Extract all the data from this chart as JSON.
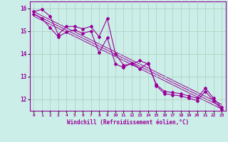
{
  "xlabel": "Windchill (Refroidissement éolien,°C)",
  "background_color": "#cceee8",
  "line_color": "#990099",
  "grid_color": "#aaccbb",
  "xlim": [
    -0.5,
    23.5
  ],
  "ylim": [
    11.5,
    16.3
  ],
  "yticks": [
    12,
    13,
    14,
    15,
    16
  ],
  "xticks": [
    0,
    1,
    2,
    3,
    4,
    5,
    6,
    7,
    8,
    9,
    10,
    11,
    12,
    13,
    14,
    15,
    16,
    17,
    18,
    19,
    20,
    21,
    22,
    23
  ],
  "series1_x": [
    0,
    1,
    2,
    3,
    4,
    5,
    6,
    7,
    8,
    9,
    10,
    11,
    12,
    13,
    14,
    15,
    16,
    17,
    18,
    19,
    20,
    21,
    22,
    23
  ],
  "series1_y": [
    15.85,
    15.95,
    15.65,
    14.85,
    15.2,
    15.2,
    15.1,
    15.2,
    14.75,
    15.55,
    14.0,
    13.5,
    13.55,
    13.7,
    13.55,
    12.65,
    12.35,
    12.3,
    12.25,
    12.15,
    12.05,
    12.5,
    12.05,
    11.65
  ],
  "series2_x": [
    0,
    1,
    2,
    3,
    4,
    5,
    6,
    7,
    8,
    9,
    10,
    11,
    12,
    13,
    14,
    15,
    16,
    17,
    18,
    19,
    20,
    21,
    22,
    23
  ],
  "series2_y": [
    15.75,
    15.55,
    15.15,
    14.75,
    14.95,
    15.05,
    14.9,
    15.0,
    14.05,
    14.7,
    13.55,
    13.4,
    13.6,
    13.35,
    13.6,
    12.6,
    12.25,
    12.2,
    12.15,
    12.05,
    11.95,
    12.35,
    11.95,
    11.55
  ],
  "trend1_x": [
    0,
    23
  ],
  "trend1_y": [
    15.85,
    11.78
  ],
  "trend2_x": [
    0,
    23
  ],
  "trend2_y": [
    15.75,
    11.68
  ],
  "trend3_x": [
    0,
    23
  ],
  "trend3_y": [
    15.65,
    11.58
  ]
}
